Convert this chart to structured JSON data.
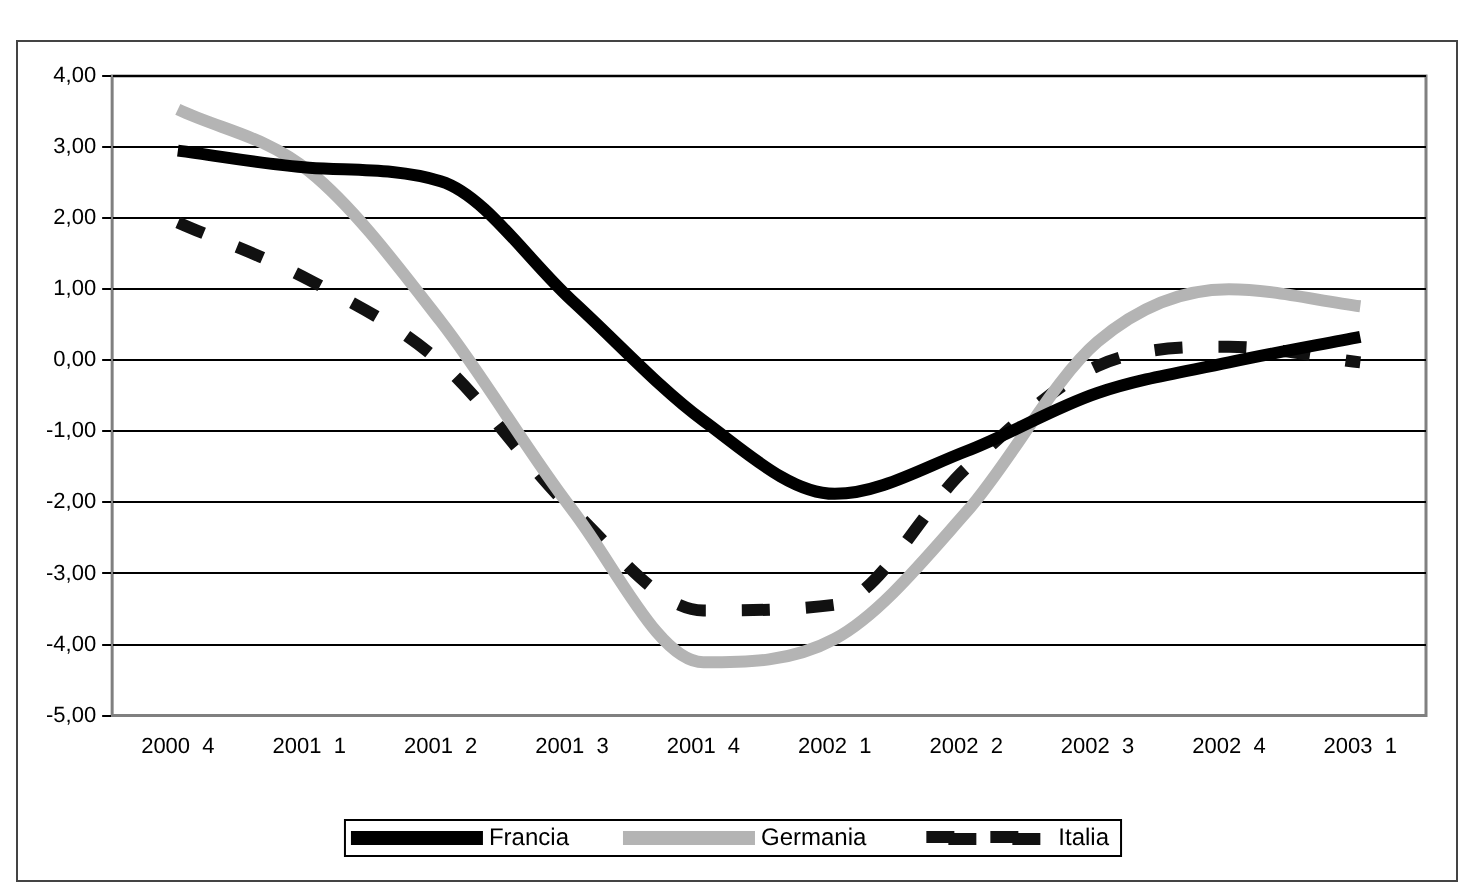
{
  "chart_data": {
    "type": "line",
    "categories": [
      "2000  4",
      "2001  1",
      "2001  2",
      "2001  3",
      "2001  4",
      "2002  1",
      "2002  2",
      "2002  3",
      "2002  4",
      "2003  1"
    ],
    "series": [
      {
        "name": "Francia",
        "color": "#000000",
        "line_style": "solid",
        "values": [
          2.95,
          2.71,
          2.52,
          0.84,
          -0.85,
          -1.88,
          -1.28,
          -0.46,
          -0.03,
          0.33
        ]
      },
      {
        "name": "Germania",
        "color": "#b4b4b4",
        "line_style": "solid",
        "values": [
          3.53,
          2.66,
          0.55,
          -2.1,
          -4.25,
          -3.92,
          -2.14,
          0.26,
          1.0,
          0.76
        ]
      },
      {
        "name": "Italia",
        "color": "#111111",
        "line_style": "dashed",
        "values": [
          1.94,
          1.13,
          -0.03,
          -2.1,
          -3.52,
          -3.44,
          -1.52,
          -0.08,
          0.19,
          -0.03
        ]
      }
    ],
    "ylim": [
      -5,
      4
    ],
    "yticks": [
      {
        "value": -5,
        "label": "-5,00"
      },
      {
        "value": -4,
        "label": "-4,00"
      },
      {
        "value": -3,
        "label": "-3,00"
      },
      {
        "value": -2,
        "label": "-2,00"
      },
      {
        "value": -1,
        "label": "-1,00"
      },
      {
        "value": 0,
        "label": "0,00"
      },
      {
        "value": 1,
        "label": "1,00"
      },
      {
        "value": 2,
        "label": "2,00"
      },
      {
        "value": 3,
        "label": "3,00"
      },
      {
        "value": 4,
        "label": "4,00"
      }
    ],
    "grid": "y",
    "legend": "bottom",
    "marker": "none"
  }
}
